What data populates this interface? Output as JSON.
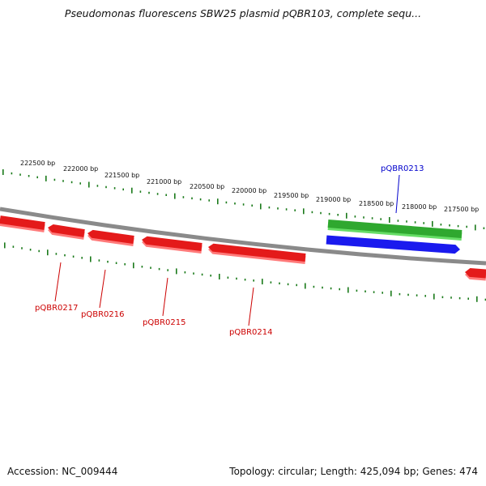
{
  "title": "Pseudomonas fluorescens SBW25 plasmid pQBR103, complete sequ...",
  "footer": {
    "accession": "Accession: NC_009444",
    "summary": "Topology: circular; Length: 425,094 bp; Genes: 474"
  },
  "colors": {
    "backbone": "#8a8a8a",
    "tick": "#1a7a1a",
    "forward_gene": "#e41a1a",
    "forward_gene_shadow": "#ff7a7a",
    "green_feature": "#2fa82f",
    "green_feature_light": "#66dd66",
    "blue_feature": "#1a1aee",
    "red_label": "#cc0000",
    "blue_label": "#0000cc"
  },
  "scale_labels": [
    "222500 bp",
    "222000 bp",
    "221500 bp",
    "221000 bp",
    "220500 bp",
    "220000 bp",
    "219500 bp",
    "219000 bp",
    "218500 bp",
    "218000 bp",
    "217500 bp"
  ],
  "gene_labels": [
    {
      "name": "pQBR0217",
      "color": "red"
    },
    {
      "name": "pQBR0216",
      "color": "red"
    },
    {
      "name": "pQBR0215",
      "color": "red"
    },
    {
      "name": "pQBR0214",
      "color": "red"
    },
    {
      "name": "pQBR0213",
      "color": "blue"
    }
  ]
}
